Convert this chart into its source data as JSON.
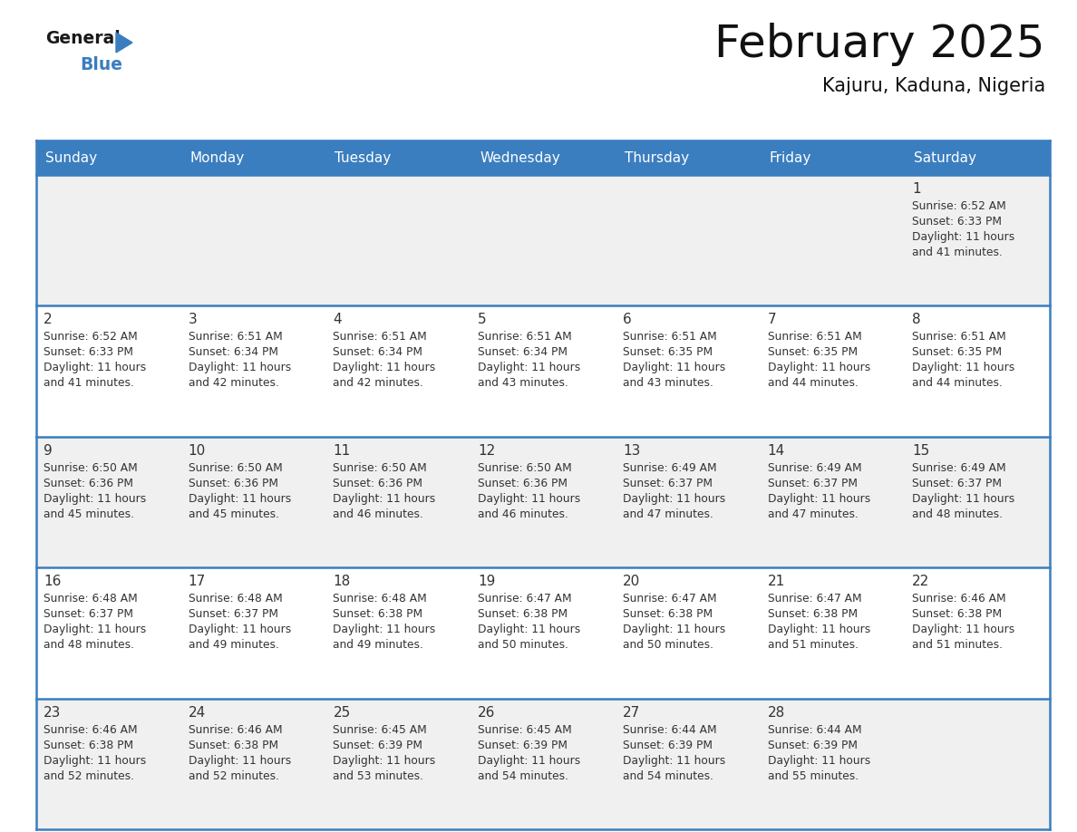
{
  "title": "February 2025",
  "subtitle": "Kajuru, Kaduna, Nigeria",
  "header_bg": "#3a7ebf",
  "header_text": "#ffffff",
  "cell_bg_odd": "#f0f0f0",
  "cell_bg_even": "#ffffff",
  "day_names": [
    "Sunday",
    "Monday",
    "Tuesday",
    "Wednesday",
    "Thursday",
    "Friday",
    "Saturday"
  ],
  "title_color": "#111111",
  "subtitle_color": "#111111",
  "divider_color": "#3a7ebf",
  "day_num_color": "#333333",
  "info_color": "#333333",
  "calendar": [
    [
      null,
      null,
      null,
      null,
      null,
      null,
      {
        "day": 1,
        "sunrise": "6:52 AM",
        "sunset": "6:33 PM",
        "daylight": "11 hours and 41 minutes"
      }
    ],
    [
      {
        "day": 2,
        "sunrise": "6:52 AM",
        "sunset": "6:33 PM",
        "daylight": "11 hours and 41 minutes"
      },
      {
        "day": 3,
        "sunrise": "6:51 AM",
        "sunset": "6:34 PM",
        "daylight": "11 hours and 42 minutes"
      },
      {
        "day": 4,
        "sunrise": "6:51 AM",
        "sunset": "6:34 PM",
        "daylight": "11 hours and 42 minutes"
      },
      {
        "day": 5,
        "sunrise": "6:51 AM",
        "sunset": "6:34 PM",
        "daylight": "11 hours and 43 minutes"
      },
      {
        "day": 6,
        "sunrise": "6:51 AM",
        "sunset": "6:35 PM",
        "daylight": "11 hours and 43 minutes"
      },
      {
        "day": 7,
        "sunrise": "6:51 AM",
        "sunset": "6:35 PM",
        "daylight": "11 hours and 44 minutes"
      },
      {
        "day": 8,
        "sunrise": "6:51 AM",
        "sunset": "6:35 PM",
        "daylight": "11 hours and 44 minutes"
      }
    ],
    [
      {
        "day": 9,
        "sunrise": "6:50 AM",
        "sunset": "6:36 PM",
        "daylight": "11 hours and 45 minutes"
      },
      {
        "day": 10,
        "sunrise": "6:50 AM",
        "sunset": "6:36 PM",
        "daylight": "11 hours and 45 minutes"
      },
      {
        "day": 11,
        "sunrise": "6:50 AM",
        "sunset": "6:36 PM",
        "daylight": "11 hours and 46 minutes"
      },
      {
        "day": 12,
        "sunrise": "6:50 AM",
        "sunset": "6:36 PM",
        "daylight": "11 hours and 46 minutes"
      },
      {
        "day": 13,
        "sunrise": "6:49 AM",
        "sunset": "6:37 PM",
        "daylight": "11 hours and 47 minutes"
      },
      {
        "day": 14,
        "sunrise": "6:49 AM",
        "sunset": "6:37 PM",
        "daylight": "11 hours and 47 minutes"
      },
      {
        "day": 15,
        "sunrise": "6:49 AM",
        "sunset": "6:37 PM",
        "daylight": "11 hours and 48 minutes"
      }
    ],
    [
      {
        "day": 16,
        "sunrise": "6:48 AM",
        "sunset": "6:37 PM",
        "daylight": "11 hours and 48 minutes"
      },
      {
        "day": 17,
        "sunrise": "6:48 AM",
        "sunset": "6:37 PM",
        "daylight": "11 hours and 49 minutes"
      },
      {
        "day": 18,
        "sunrise": "6:48 AM",
        "sunset": "6:38 PM",
        "daylight": "11 hours and 49 minutes"
      },
      {
        "day": 19,
        "sunrise": "6:47 AM",
        "sunset": "6:38 PM",
        "daylight": "11 hours and 50 minutes"
      },
      {
        "day": 20,
        "sunrise": "6:47 AM",
        "sunset": "6:38 PM",
        "daylight": "11 hours and 50 minutes"
      },
      {
        "day": 21,
        "sunrise": "6:47 AM",
        "sunset": "6:38 PM",
        "daylight": "11 hours and 51 minutes"
      },
      {
        "day": 22,
        "sunrise": "6:46 AM",
        "sunset": "6:38 PM",
        "daylight": "11 hours and 51 minutes"
      }
    ],
    [
      {
        "day": 23,
        "sunrise": "6:46 AM",
        "sunset": "6:38 PM",
        "daylight": "11 hours and 52 minutes"
      },
      {
        "day": 24,
        "sunrise": "6:46 AM",
        "sunset": "6:38 PM",
        "daylight": "11 hours and 52 minutes"
      },
      {
        "day": 25,
        "sunrise": "6:45 AM",
        "sunset": "6:39 PM",
        "daylight": "11 hours and 53 minutes"
      },
      {
        "day": 26,
        "sunrise": "6:45 AM",
        "sunset": "6:39 PM",
        "daylight": "11 hours and 54 minutes"
      },
      {
        "day": 27,
        "sunrise": "6:44 AM",
        "sunset": "6:39 PM",
        "daylight": "11 hours and 54 minutes"
      },
      {
        "day": 28,
        "sunrise": "6:44 AM",
        "sunset": "6:39 PM",
        "daylight": "11 hours and 55 minutes"
      },
      null
    ]
  ],
  "logo_general_color": "#1a1a1a",
  "logo_blue_color": "#3a7ebf",
  "logo_triangle_color": "#3a7ebf",
  "fig_width": 11.88,
  "fig_height": 9.18,
  "dpi": 100
}
